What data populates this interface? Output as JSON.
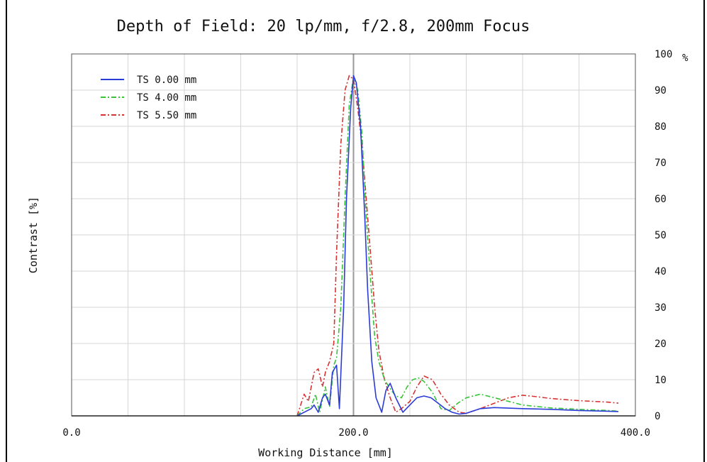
{
  "chart_data": {
    "type": "line",
    "title": "Depth of Field: 20 lp/mm, f/2.8, 200mm Focus",
    "xlabel": "Working Distance [mm]",
    "ylabel": "Contrast [%]",
    "y_unit": "%",
    "xlim": [
      0,
      400
    ],
    "ylim": [
      0,
      100
    ],
    "x_tick_labels": [
      "0.0",
      "200.0",
      "400.0"
    ],
    "y_tick_labels": [
      "0",
      "10",
      "20",
      "30",
      "40",
      "50",
      "60",
      "70",
      "80",
      "90",
      "100"
    ],
    "grid": true,
    "legend_position": "top-left",
    "series": [
      {
        "name": "TS 0.00 mm",
        "color": "#2b3bd8",
        "style": "solid",
        "x": [
          160,
          165,
          170,
          172,
          175,
          178,
          180,
          183,
          185,
          188,
          190,
          193,
          195,
          198,
          200,
          202,
          205,
          208,
          210,
          213,
          216,
          220,
          223,
          226,
          230,
          235,
          240,
          245,
          250,
          255,
          260,
          265,
          270,
          275,
          280,
          290,
          300,
          320,
          340,
          360,
          380,
          388
        ],
        "y": [
          0,
          1,
          2,
          3,
          1,
          5,
          6,
          3,
          12,
          14,
          2,
          30,
          60,
          85,
          94,
          92,
          80,
          55,
          35,
          15,
          5,
          1,
          7,
          9,
          5,
          1,
          3,
          5,
          5.5,
          5,
          3.5,
          2,
          1,
          0.5,
          0.7,
          2,
          2.3,
          2,
          1.8,
          1.5,
          1.3,
          1.2
        ]
      },
      {
        "name": "TS 4.00 mm",
        "color": "#39c339",
        "style": "dashdot",
        "x": [
          160,
          165,
          170,
          173,
          176,
          180,
          183,
          186,
          188,
          191,
          194,
          197,
          200,
          203,
          206,
          209,
          212,
          215,
          218,
          222,
          226,
          230,
          234,
          238,
          242,
          246,
          250,
          256,
          262,
          268,
          274,
          280,
          290,
          300,
          320,
          340,
          360,
          380,
          388
        ],
        "y": [
          0,
          2,
          2.5,
          6,
          1,
          8,
          2.5,
          14,
          16,
          30,
          60,
          86,
          93.5,
          90,
          78,
          55,
          38,
          22,
          15,
          10,
          7.5,
          5.5,
          5,
          8,
          10,
          10.5,
          9.5,
          6.5,
          2,
          1.5,
          3.5,
          5,
          6,
          5,
          3,
          2.2,
          1.8,
          1.5,
          1.3
        ]
      },
      {
        "name": "TS 5.50 mm",
        "color": "#d63333",
        "style": "dashdot",
        "x": [
          160,
          165,
          168,
          172,
          175,
          178,
          180,
          183,
          186,
          188,
          191,
          194,
          197,
          200,
          203,
          206,
          209,
          212,
          215,
          218,
          222,
          226,
          230,
          234,
          240,
          245,
          250,
          256,
          262,
          268,
          275,
          280,
          290,
          300,
          310,
          320,
          330,
          340,
          360,
          380,
          388
        ],
        "y": [
          0,
          6,
          4,
          12,
          13,
          8,
          12,
          15,
          20,
          45,
          75,
          90,
          94,
          93,
          85,
          75,
          60,
          45,
          30,
          18,
          10,
          5,
          1,
          2,
          4,
          8,
          11,
          10,
          6,
          3,
          1,
          0.7,
          2,
          3.5,
          5,
          5.7,
          5.3,
          4.8,
          4.2,
          3.8,
          3.5
        ]
      }
    ]
  }
}
